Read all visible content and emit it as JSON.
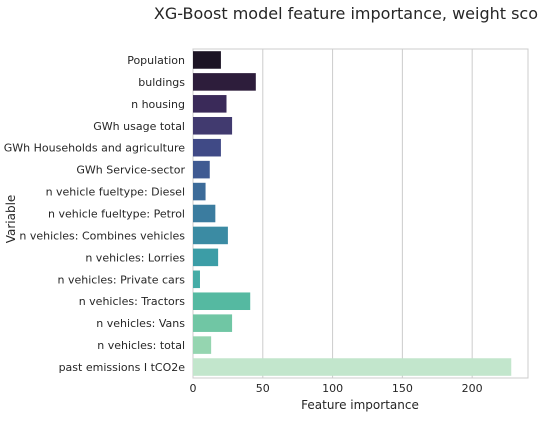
{
  "chart_data": {
    "type": "bar",
    "orientation": "horizontal",
    "title": "XG-Boost model feature importance, weight score",
    "xlabel": "Feature importance",
    "ylabel": "Variable",
    "xlim": [
      0,
      240
    ],
    "xticks": [
      0,
      50,
      100,
      150,
      200
    ],
    "grid": "vertical",
    "categories": [
      "Population",
      "buldings",
      "n housing",
      "GWh usage total",
      "GWh Households and agriculture",
      "GWh Service-sector",
      "n vehicle fueltype: Diesel",
      "n vehicle fueltype: Petrol",
      "n vehicles: Combines vehicles",
      "n vehicles: Lorries",
      "n vehicles: Private cars",
      "n vehicles: Tractors",
      "n vehicles: Vans",
      "n vehicles: total",
      "past emissions I tCO2e"
    ],
    "values": [
      20,
      45,
      24,
      28,
      20,
      12,
      9,
      16,
      25,
      18,
      5,
      41,
      28,
      13,
      228
    ],
    "colors": [
      "#1c1424",
      "#2d1d3b",
      "#3a2a59",
      "#413a6f",
      "#404a86",
      "#3f5a92",
      "#3c6b99",
      "#3b7c9f",
      "#3b8ba3",
      "#3c9da6",
      "#45aca6",
      "#55b9a1",
      "#70c6a4",
      "#95d5b0",
      "#c2e6cc"
    ]
  }
}
